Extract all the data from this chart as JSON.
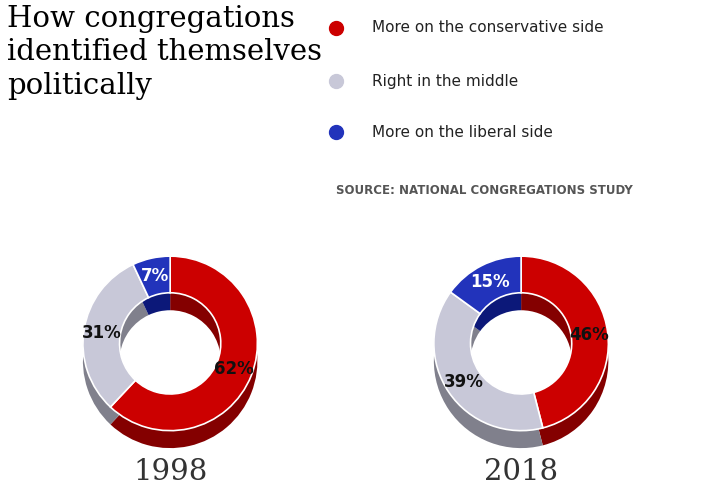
{
  "title_lines": [
    "How congregations",
    "identified themselves",
    "politically"
  ],
  "legend_items": [
    {
      "label": "More on the conservative side",
      "color": "#cc0000"
    },
    {
      "label": "Right in the middle",
      "color": "#c8c8d8"
    },
    {
      "label": "More on the liberal side",
      "color": "#2233bb"
    }
  ],
  "source_text": "SOURCE: NATIONAL CONGREGATIONS STUDY",
  "charts": [
    {
      "year": "1998",
      "values": [
        62,
        31,
        7
      ],
      "labels": [
        "62%",
        "31%",
        "7%"
      ],
      "colors": [
        "#cc0000",
        "#c8c8d8",
        "#2233bb"
      ],
      "label_colors": [
        "#111111",
        "#111111",
        "#ffffff"
      ]
    },
    {
      "year": "2018",
      "values": [
        46,
        39,
        15
      ],
      "labels": [
        "46%",
        "39%",
        "15%"
      ],
      "colors": [
        "#cc0000",
        "#c8c8d8",
        "#2233bb"
      ],
      "label_colors": [
        "#111111",
        "#111111",
        "#ffffff"
      ]
    }
  ],
  "background_color": "#ffffff",
  "title_fontsize": 21,
  "legend_fontsize": 11,
  "source_fontsize": 8.5,
  "year_fontsize": 21,
  "pct_fontsize": 12,
  "donut_width": 0.42
}
